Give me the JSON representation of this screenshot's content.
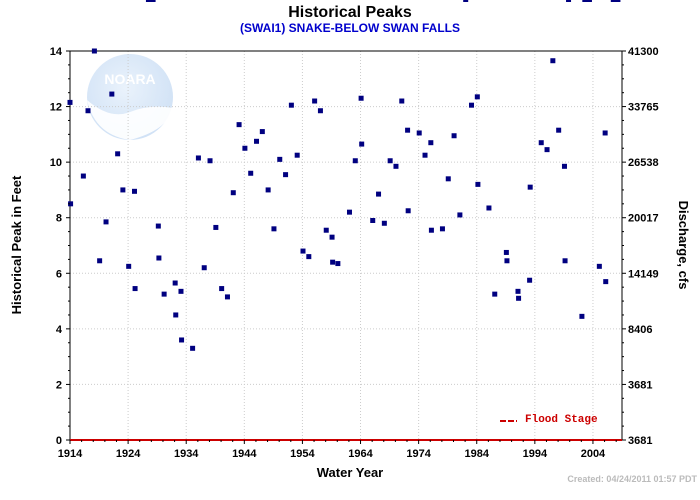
{
  "chart_data": {
    "type": "scatter",
    "title": "Historical Peaks",
    "subtitle": "(SWAI1) SNAKE-BELOW SWAN FALLS",
    "xlabel": "Water Year",
    "ylabel": "Historical Peak in Feet",
    "y2label": "Discharge, cfs",
    "xlim": [
      1914,
      2009
    ],
    "ylim": [
      0,
      14
    ],
    "x_ticks": [
      "1914",
      "1924",
      "1934",
      "1944",
      "1954",
      "1964",
      "1974",
      "1984",
      "1994",
      "2004"
    ],
    "y_ticks": [
      "0",
      "2",
      "4",
      "6",
      "8",
      "10",
      "12",
      "14"
    ],
    "y2_ticks": [
      "3681",
      "3681",
      "8406",
      "14149",
      "20017",
      "26538",
      "33765",
      "41300"
    ],
    "grid": true,
    "flood_stage_label": "Flood Stage",
    "flood_stage_value": 0,
    "logo_text": "NOARA",
    "created": "Created: 04/24/2011 01:57 PDT",
    "marker_color": "#000080",
    "flood_stage_color": "#cc0000",
    "points": [
      {
        "x": 1914.0,
        "y": 12.15
      },
      {
        "x": 1914.1,
        "y": 8.5
      },
      {
        "x": 1916.3,
        "y": 9.5
      },
      {
        "x": 1917.1,
        "y": 11.85
      },
      {
        "x": 1918.2,
        "y": 14.0
      },
      {
        "x": 1919.1,
        "y": 6.45
      },
      {
        "x": 1920.2,
        "y": 7.85
      },
      {
        "x": 1921.2,
        "y": 12.45
      },
      {
        "x": 1922.2,
        "y": 10.3
      },
      {
        "x": 1923.1,
        "y": 9.0
      },
      {
        "x": 1924.1,
        "y": 6.25
      },
      {
        "x": 1925.1,
        "y": 8.95
      },
      {
        "x": 1925.2,
        "y": 5.45
      },
      {
        "x": 1929.2,
        "y": 7.7
      },
      {
        "x": 1929.3,
        "y": 6.55
      },
      {
        "x": 1930.2,
        "y": 5.25
      },
      {
        "x": 1932.1,
        "y": 5.65
      },
      {
        "x": 1932.2,
        "y": 4.5
      },
      {
        "x": 1933.1,
        "y": 5.35
      },
      {
        "x": 1933.2,
        "y": 3.6
      },
      {
        "x": 1935.1,
        "y": 3.3
      },
      {
        "x": 1936.1,
        "y": 10.15
      },
      {
        "x": 1937.1,
        "y": 6.2
      },
      {
        "x": 1938.1,
        "y": 10.05
      },
      {
        "x": 1939.1,
        "y": 7.65
      },
      {
        "x": 1940.1,
        "y": 5.45
      },
      {
        "x": 1941.1,
        "y": 5.15
      },
      {
        "x": 1942.1,
        "y": 8.9
      },
      {
        "x": 1943.1,
        "y": 11.35
      },
      {
        "x": 1944.1,
        "y": 10.5
      },
      {
        "x": 1945.1,
        "y": 9.6
      },
      {
        "x": 1946.1,
        "y": 10.75
      },
      {
        "x": 1947.1,
        "y": 11.1
      },
      {
        "x": 1948.1,
        "y": 9.0
      },
      {
        "x": 1949.1,
        "y": 7.6
      },
      {
        "x": 1950.1,
        "y": 10.1
      },
      {
        "x": 1951.1,
        "y": 9.55
      },
      {
        "x": 1952.1,
        "y": 12.05
      },
      {
        "x": 1953.1,
        "y": 10.25
      },
      {
        "x": 1954.1,
        "y": 6.8
      },
      {
        "x": 1955.1,
        "y": 6.6
      },
      {
        "x": 1956.1,
        "y": 12.2
      },
      {
        "x": 1957.1,
        "y": 11.85
      },
      {
        "x": 1958.1,
        "y": 7.55
      },
      {
        "x": 1959.1,
        "y": 7.3
      },
      {
        "x": 1959.2,
        "y": 6.4
      },
      {
        "x": 1960.1,
        "y": 6.35
      },
      {
        "x": 1962.1,
        "y": 8.2
      },
      {
        "x": 1963.1,
        "y": 10.05
      },
      {
        "x": 1964.1,
        "y": 12.3
      },
      {
        "x": 1964.2,
        "y": 10.65
      },
      {
        "x": 1966.1,
        "y": 7.9
      },
      {
        "x": 1967.1,
        "y": 8.85
      },
      {
        "x": 1968.1,
        "y": 7.8
      },
      {
        "x": 1969.1,
        "y": 10.05
      },
      {
        "x": 1970.1,
        "y": 9.85
      },
      {
        "x": 1971.1,
        "y": 12.2
      },
      {
        "x": 1972.1,
        "y": 11.15
      },
      {
        "x": 1972.2,
        "y": 8.25
      },
      {
        "x": 1974.1,
        "y": 11.05
      },
      {
        "x": 1975.1,
        "y": 10.25
      },
      {
        "x": 1976.1,
        "y": 10.7
      },
      {
        "x": 1976.2,
        "y": 7.55
      },
      {
        "x": 1978.1,
        "y": 7.6
      },
      {
        "x": 1979.1,
        "y": 9.4
      },
      {
        "x": 1980.1,
        "y": 10.95
      },
      {
        "x": 1981.1,
        "y": 8.1
      },
      {
        "x": 1983.1,
        "y": 12.05
      },
      {
        "x": 1984.1,
        "y": 12.35
      },
      {
        "x": 1984.2,
        "y": 9.2
      },
      {
        "x": 1986.1,
        "y": 8.35
      },
      {
        "x": 1987.1,
        "y": 5.25
      },
      {
        "x": 1989.1,
        "y": 6.75
      },
      {
        "x": 1989.2,
        "y": 6.45
      },
      {
        "x": 1991.1,
        "y": 5.35
      },
      {
        "x": 1991.2,
        "y": 5.1
      },
      {
        "x": 1993.1,
        "y": 5.75
      },
      {
        "x": 1993.2,
        "y": 9.1
      },
      {
        "x": 1995.1,
        "y": 10.7
      },
      {
        "x": 1996.1,
        "y": 10.45
      },
      {
        "x": 1997.1,
        "y": 13.65
      },
      {
        "x": 1998.1,
        "y": 11.15
      },
      {
        "x": 1999.1,
        "y": 9.85
      },
      {
        "x": 1999.2,
        "y": 6.45
      },
      {
        "x": 2002.1,
        "y": 4.45
      },
      {
        "x": 2005.1,
        "y": 6.25
      },
      {
        "x": 2006.1,
        "y": 11.05
      },
      {
        "x": 2006.2,
        "y": 5.7
      }
    ]
  }
}
